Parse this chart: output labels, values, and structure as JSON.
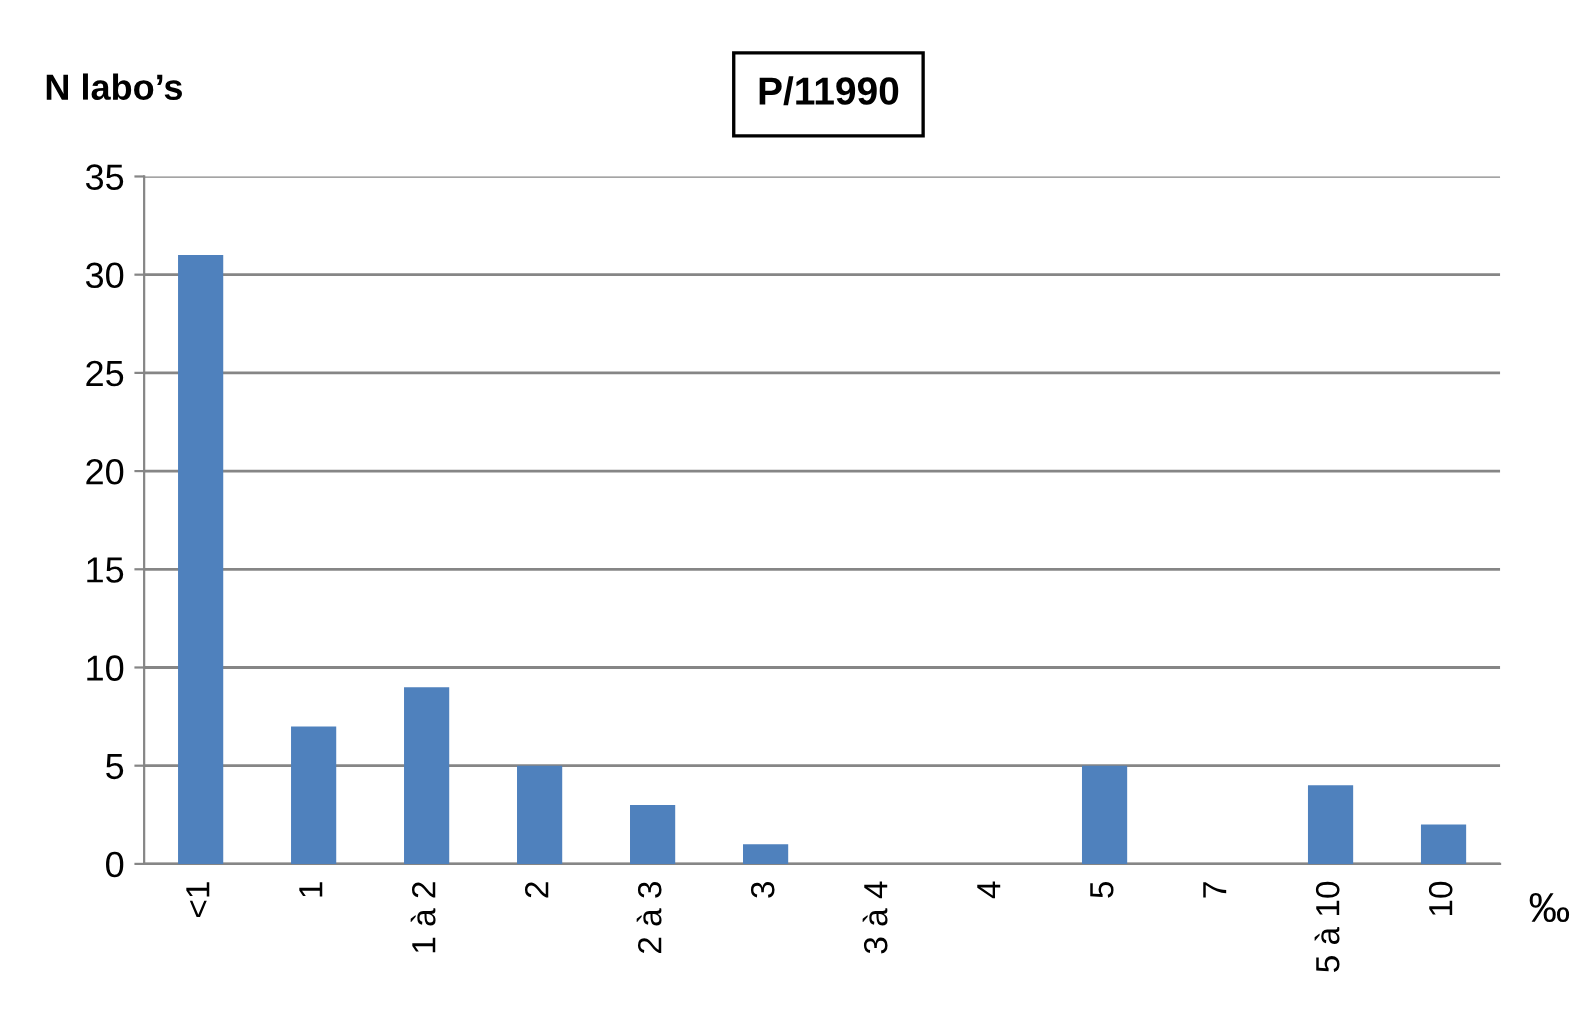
{
  "chart_data": {
    "type": "bar",
    "title": "P/11990",
    "ylabel": "N labo’s",
    "xlabel": "‰",
    "categories": [
      "<1",
      "1",
      "1 à 2",
      "2",
      "2 à 3",
      "3",
      "3 à 4",
      "4",
      "5",
      "7",
      "5 à 10",
      "10"
    ],
    "values": [
      31,
      7,
      9,
      5,
      3,
      1,
      0,
      0,
      5,
      0,
      4,
      2
    ],
    "color": "#4f81bd",
    "ylim": [
      0,
      35
    ],
    "yticks": [
      0,
      5,
      10,
      15,
      20,
      25,
      30,
      35
    ],
    "grid": "y",
    "legend": false
  }
}
